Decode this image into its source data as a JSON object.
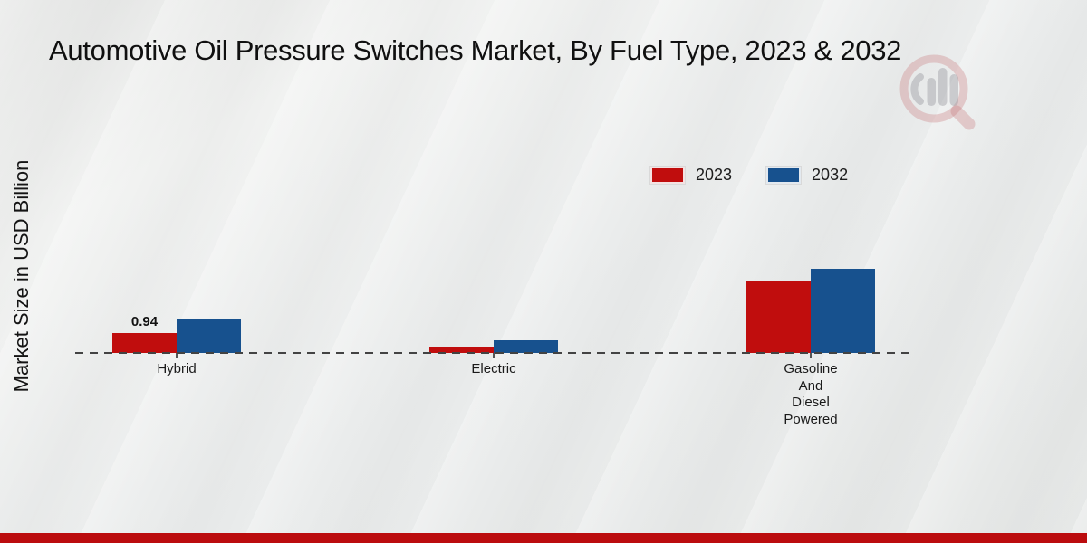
{
  "page": {
    "title": "Automotive Oil Pressure Switches Market, By Fuel Type, 2023 & 2032"
  },
  "chart_data": {
    "type": "bar",
    "title": "Automotive Oil Pressure Switches Market, By Fuel Type, 2023 & 2032",
    "xlabel": "",
    "ylabel": "Market Size in USD Billion",
    "categories": [
      "Hybrid",
      "Electric",
      "Gasoline And Diesel Powered"
    ],
    "series": [
      {
        "name": "2023",
        "color": "#c00d0d",
        "values": [
          0.94,
          0.32,
          3.38
        ]
      },
      {
        "name": "2032",
        "color": "#17518e",
        "values": [
          1.62,
          0.58,
          3.97
        ]
      }
    ],
    "data_labels": [
      {
        "series": "2023",
        "category": "Hybrid",
        "text": "0.94"
      }
    ],
    "ylim": [
      0,
      4.5
    ],
    "grid": false,
    "axis_line_style": "dashed-baseline-only",
    "legend_position": "top-right"
  },
  "footer": {
    "bar_color": "#bb0c0e"
  },
  "watermark": {
    "name": "market-research-magnifier-logo",
    "ring_color": "rgba(198,118,120,0.32)",
    "bars_color": "rgba(158,158,164,0.45)"
  }
}
